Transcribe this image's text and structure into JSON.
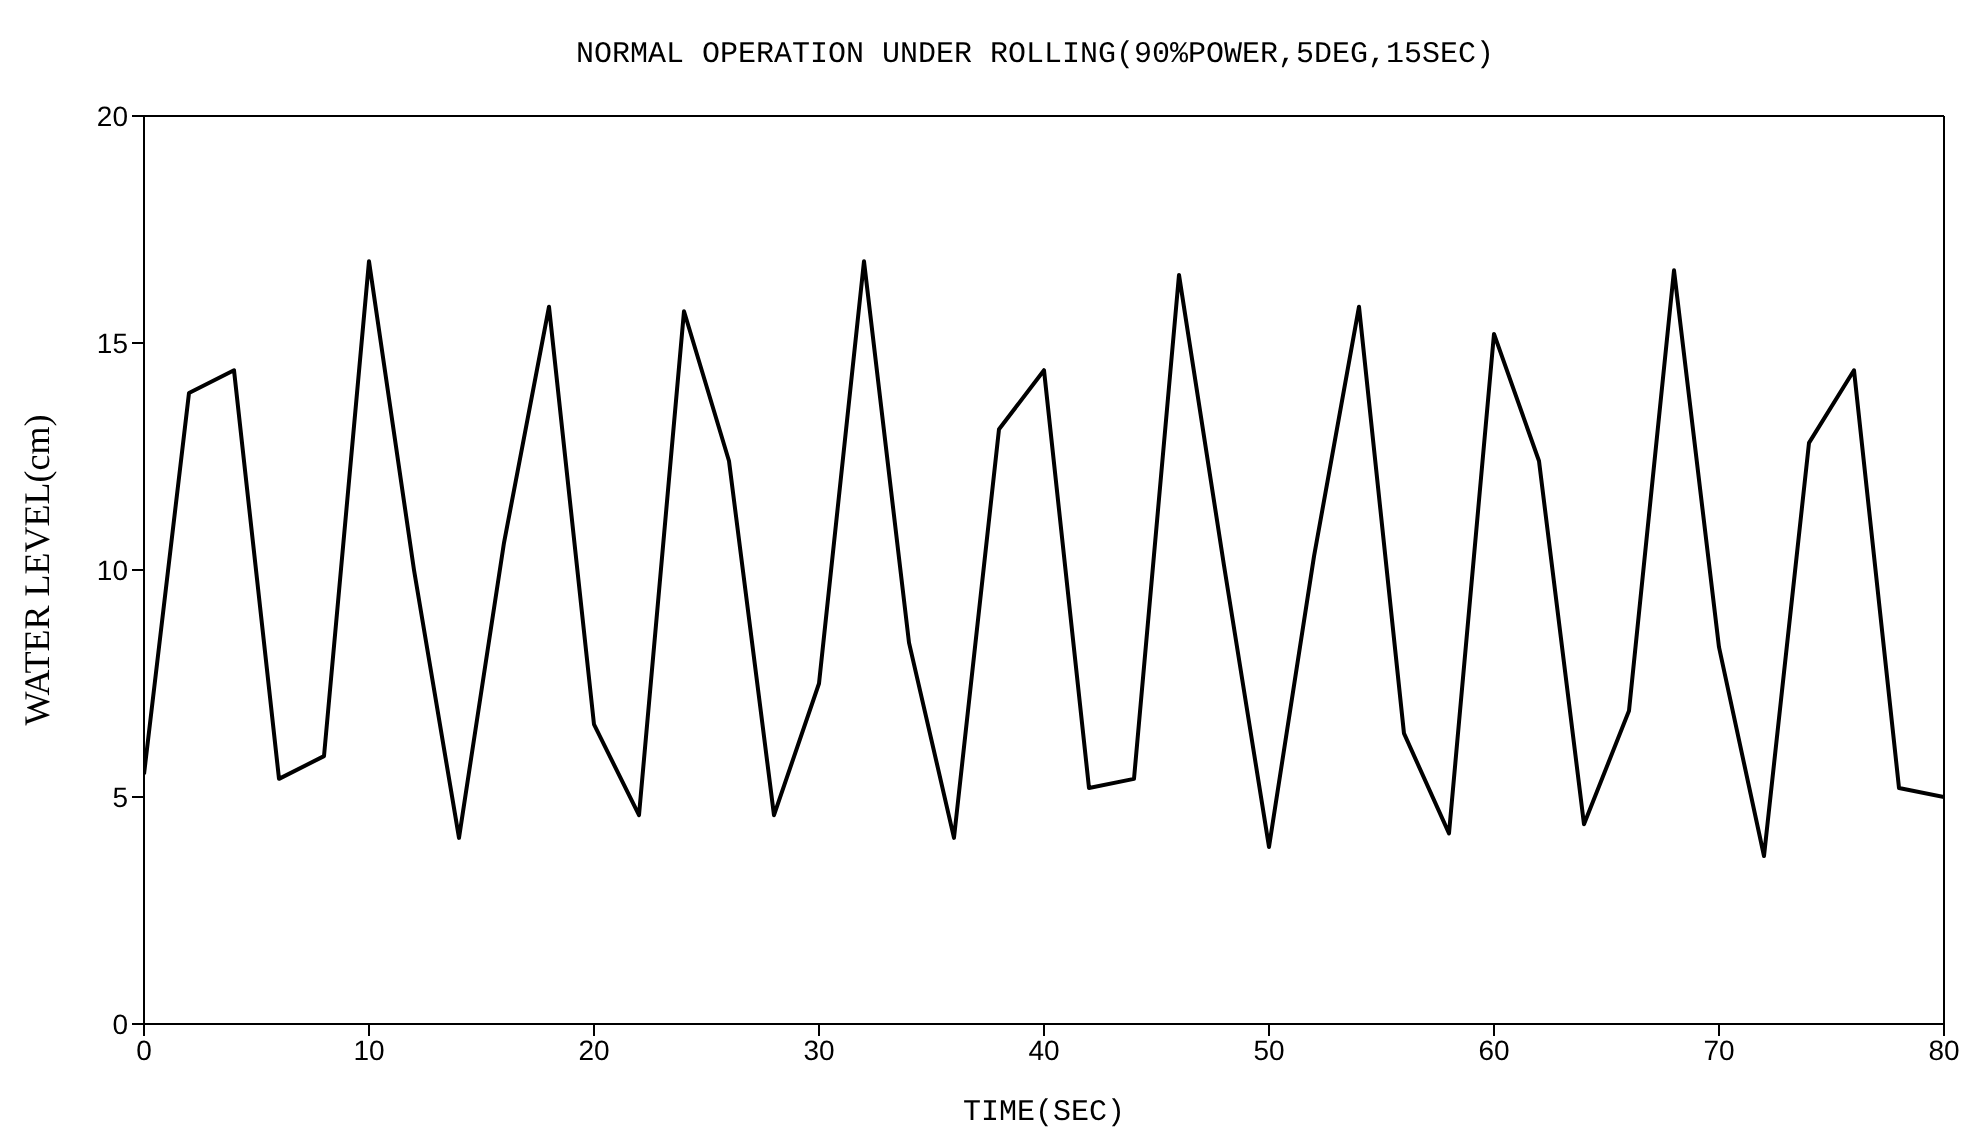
{
  "chart_data": {
    "type": "line",
    "title": "NORMAL OPERATION UNDER ROLLING(90%POWER,5DEG,15SEC)",
    "xlabel": "TIME(SEC)",
    "ylabel": "WATER LEVEL(cm)",
    "x": [
      0,
      2,
      4,
      6,
      8,
      10,
      12,
      14,
      16,
      18,
      20,
      22,
      24,
      26,
      28,
      30,
      32,
      34,
      36,
      38,
      40,
      42,
      44,
      46,
      48,
      50,
      52,
      54,
      56,
      58,
      60,
      62,
      64,
      66,
      68,
      70,
      72,
      74,
      76,
      78,
      80
    ],
    "series": [
      {
        "color": "#000000",
        "values": [
          5.5,
          13.9,
          14.4,
          5.4,
          5.9,
          16.8,
          10.0,
          4.1,
          10.6,
          15.8,
          6.6,
          4.6,
          15.7,
          12.4,
          4.6,
          7.5,
          16.8,
          8.4,
          4.1,
          13.1,
          14.4,
          5.2,
          5.4,
          16.5,
          10.1,
          3.9,
          10.3,
          15.8,
          6.4,
          4.2,
          15.2,
          12.4,
          4.4,
          6.9,
          16.6,
          8.3,
          3.7,
          12.8,
          14.4,
          5.2,
          5.0
        ]
      }
    ],
    "xlim": [
      0,
      80
    ],
    "xticks": [
      0,
      10,
      20,
      30,
      40,
      50,
      60,
      70,
      80
    ],
    "ylim": [
      0,
      20
    ],
    "yticks": [
      0,
      5,
      10,
      15,
      20
    ],
    "grid": false,
    "legend": false,
    "marker": "none",
    "line_style": "solid"
  }
}
